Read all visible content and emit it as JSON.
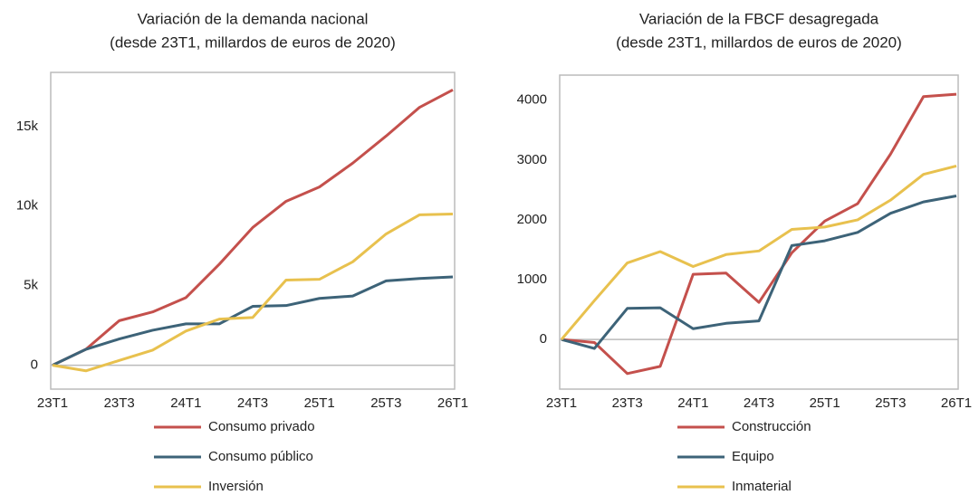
{
  "chart_data": [
    {
      "type": "line",
      "title": [
        "Variación de la demanda nacional",
        "(desde 23T1, millardos de euros de 2020)"
      ],
      "categories": [
        "23T1",
        null,
        "23T3",
        null,
        "24T1",
        null,
        "24T3",
        null,
        "25T1",
        null,
        "25T3",
        null,
        "26T1"
      ],
      "series": [
        {
          "name": "Consumo privado",
          "color": "#c4504c",
          "values": [
            0,
            1000,
            2800,
            3350,
            4250,
            6350,
            8650,
            10300,
            11200,
            12700,
            14400,
            16200,
            17300
          ]
        },
        {
          "name": "Consumo público",
          "color": "#3d6378",
          "values": [
            0,
            1000,
            1650,
            2200,
            2600,
            2600,
            3700,
            3750,
            4200,
            4350,
            5300,
            5450,
            5550
          ]
        },
        {
          "name": "Inversión",
          "color": "#e8c14e",
          "values": [
            0,
            -350,
            300,
            950,
            2150,
            2900,
            3000,
            5350,
            5400,
            6500,
            8250,
            9450,
            9500
          ]
        }
      ],
      "ylim": [
        -1500,
        18400
      ],
      "yticks": [
        0,
        {
          "value": 5000,
          "label": "5k"
        },
        {
          "value": 10000,
          "label": "10k"
        },
        {
          "value": 15000,
          "label": "15k"
        }
      ],
      "grid": false,
      "legend": "below"
    },
    {
      "type": "line",
      "title": [
        "Variación de la FBCF desagregada",
        "(desde 23T1, millardos de euros de 2020)"
      ],
      "categories": [
        "23T1",
        null,
        "23T3",
        null,
        "24T1",
        null,
        "24T3",
        null,
        "25T1",
        null,
        "25T3",
        null,
        "26T1"
      ],
      "series": [
        {
          "name": "Construcción",
          "color": "#c4504c",
          "values": [
            0,
            -50,
            -570,
            -450,
            1090,
            1110,
            620,
            1450,
            1980,
            2270,
            3100,
            4060,
            4100
          ]
        },
        {
          "name": "Equipo",
          "color": "#3d6378",
          "values": [
            0,
            -150,
            520,
            530,
            180,
            270,
            310,
            1570,
            1650,
            1790,
            2110,
            2300,
            2400
          ]
        },
        {
          "name": "Inmaterial",
          "color": "#e8c14e",
          "values": [
            0,
            650,
            1280,
            1470,
            1220,
            1420,
            1480,
            1840,
            1880,
            2000,
            2330,
            2760,
            2900
          ]
        }
      ],
      "ylim": [
        -830,
        4420
      ],
      "yticks": [
        0,
        1000,
        2000,
        3000,
        4000
      ],
      "grid": false,
      "legend": "below"
    }
  ]
}
